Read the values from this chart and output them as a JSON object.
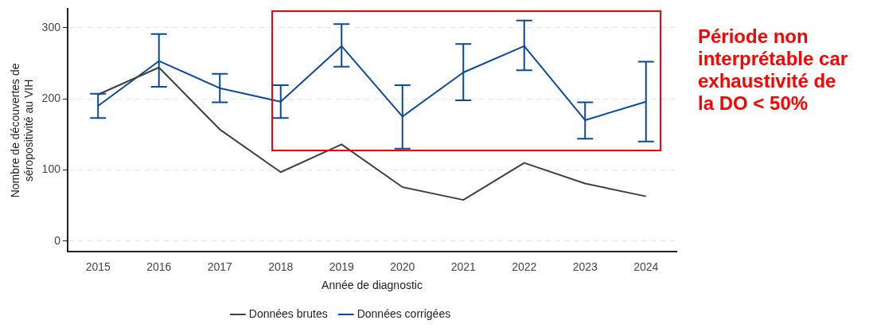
{
  "chart_data": {
    "type": "line",
    "xlabel": "Année de diagnostic",
    "ylabel": "Nombre de découvertes de\nséropositivité au VIH",
    "categories": [
      "2015",
      "2016",
      "2017",
      "2018",
      "2019",
      "2020",
      "2021",
      "2022",
      "2023",
      "2024"
    ],
    "series": [
      {
        "name": "Données brutes",
        "color": "#404040",
        "values": [
          206,
          244,
          157,
          97,
          136,
          76,
          58,
          110,
          81,
          63
        ]
      },
      {
        "name": "Données corrigées",
        "color": "#0b4a99",
        "values": [
          190,
          253,
          215,
          196,
          274,
          175,
          237,
          274,
          170,
          196
        ],
        "errors": [
          [
            173,
            207
          ],
          [
            217,
            291
          ],
          [
            195,
            235
          ],
          [
            173,
            219
          ],
          [
            245,
            305
          ],
          [
            130,
            219
          ],
          [
            198,
            277
          ],
          [
            240,
            310
          ],
          [
            144,
            195
          ],
          [
            140,
            252
          ]
        ]
      }
    ],
    "ylim": [
      -15,
      326
    ],
    "yticks": [
      0,
      100,
      200,
      300
    ],
    "grid": "y",
    "legend": "bottom",
    "marker": "none",
    "line_style": "solid",
    "annotations": [
      "Période non interprétable car exhaustivité de la DO < 50%"
    ]
  }
}
